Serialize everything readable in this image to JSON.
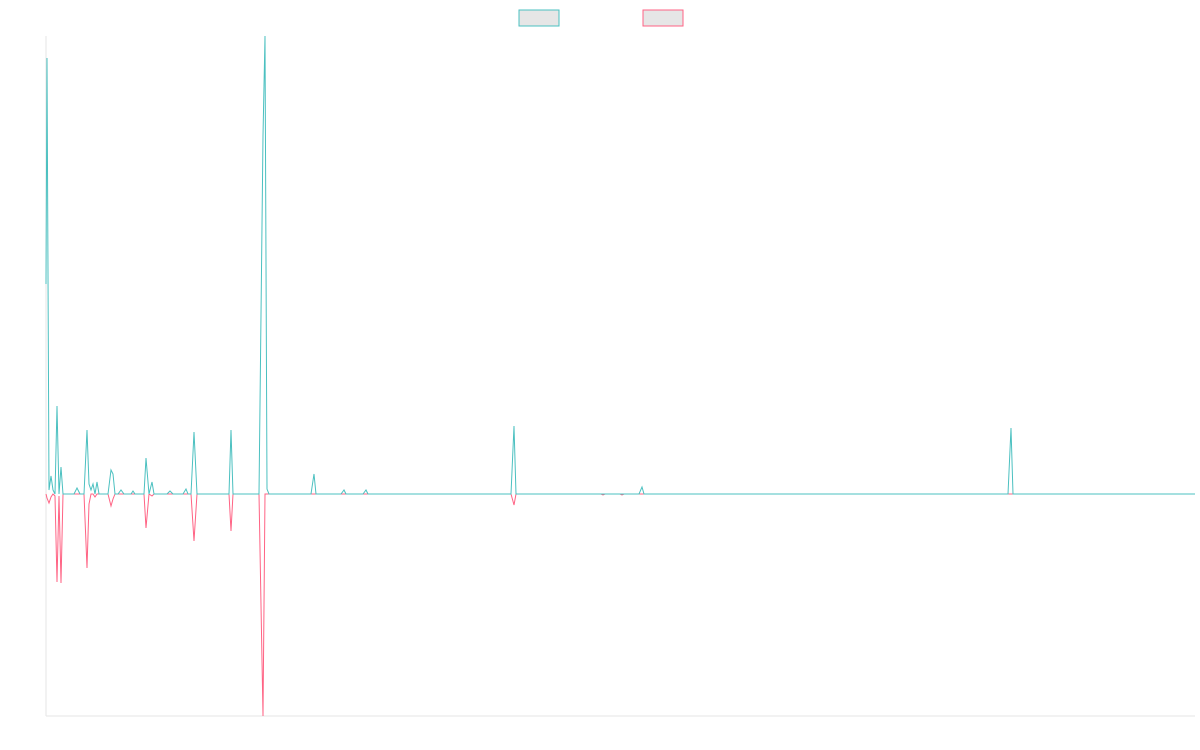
{
  "chart_data": {
    "type": "line",
    "x": [
      0,
      1,
      3,
      5,
      7,
      9,
      11,
      13,
      15,
      17,
      20,
      28,
      31,
      34,
      38,
      41,
      43,
      45,
      47,
      49,
      51,
      53,
      62,
      65,
      67,
      69,
      72,
      75,
      78,
      85,
      87,
      89,
      98,
      100,
      103,
      106,
      108,
      121,
      124,
      127,
      137,
      140,
      142,
      145,
      148,
      151,
      183,
      185,
      187,
      213,
      217,
      219,
      221,
      223,
      265,
      268,
      270,
      295,
      298,
      300,
      317,
      320,
      322,
      465,
      468,
      470,
      555,
      557,
      559,
      574,
      576,
      578,
      593,
      596,
      598,
      962,
      965,
      967,
      1149
    ],
    "xlim": [
      0,
      1149
    ],
    "ylim": [
      -222,
      458
    ],
    "legend": "top",
    "series": [
      {
        "color": "#4bc0c0",
        "values": [
          210,
          436,
          4,
          18,
          4,
          0,
          88,
          0,
          27,
          0,
          0,
          0,
          6,
          0,
          0,
          64,
          10,
          4,
          10,
          0,
          12,
          0,
          0,
          24,
          20,
          0,
          0,
          4,
          0,
          0,
          3,
          0,
          0,
          36,
          0,
          12,
          0,
          0,
          3,
          0,
          0,
          5,
          0,
          0,
          62,
          0,
          0,
          64,
          0,
          0,
          358,
          458,
          5,
          0,
          0,
          20,
          0,
          0,
          4,
          0,
          0,
          4,
          0,
          0,
          68,
          0,
          0,
          0,
          0,
          0,
          0,
          0,
          0,
          7,
          0,
          0,
          66,
          0,
          0
        ]
      },
      {
        "color": "#ff6384",
        "values": [
          0,
          -4,
          -9,
          -3,
          0,
          -2,
          -88,
          -2,
          -89,
          0,
          0,
          0,
          0,
          0,
          0,
          -74,
          -10,
          0,
          0,
          -3,
          0,
          0,
          0,
          -12,
          -5,
          0,
          0,
          0,
          0,
          0,
          0,
          0,
          0,
          -34,
          0,
          -2,
          0,
          0,
          0,
          0,
          0,
          0,
          0,
          0,
          -47,
          0,
          0,
          -37,
          0,
          0,
          -222,
          0,
          0,
          0,
          0,
          0,
          0,
          0,
          0,
          0,
          0,
          0,
          0,
          0,
          -11,
          0,
          0,
          -1,
          0,
          0,
          -1,
          0,
          0,
          0,
          0,
          0,
          0,
          0,
          0
        ]
      }
    ]
  }
}
